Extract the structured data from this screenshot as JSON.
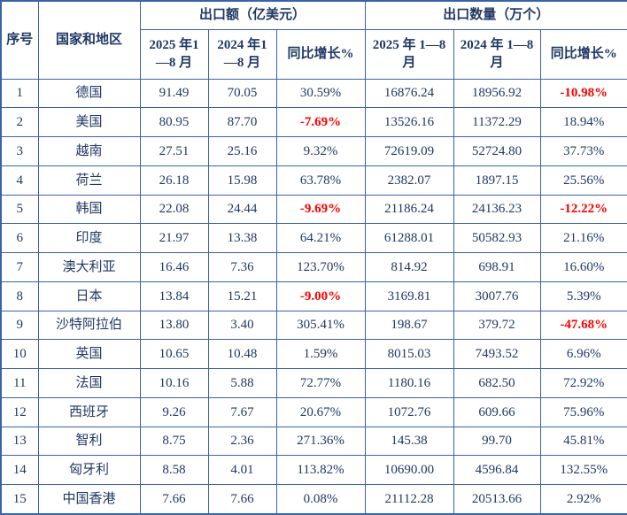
{
  "colors": {
    "text": "#1f3864",
    "border": "#3a62a8",
    "negative": "#ff0000",
    "background": "#ffffff"
  },
  "table": {
    "header": {
      "col_index": "序号",
      "col_country": "国家和地区",
      "group_export_value": "出口额（亿美元）",
      "group_export_qty": "出口数量（万个）",
      "sub_value_2025": "2025 年1—8 月",
      "sub_value_2024": "2024 年1—8 月",
      "sub_value_yoy": "同比增长%",
      "sub_qty_2025": "2025 年 1—8 月",
      "sub_qty_2024": "2024 年 1—8 月",
      "sub_qty_yoy": "同比增长%"
    },
    "rows": [
      {
        "no": "1",
        "country": "德国",
        "v2025": "91.49",
        "v2024": "70.05",
        "vyoy": "30.59%",
        "q2025": "16876.24",
        "q2024": "18956.92",
        "qyoy": "-10.98%"
      },
      {
        "no": "2",
        "country": "美国",
        "v2025": "80.95",
        "v2024": "87.70",
        "vyoy": "-7.69%",
        "q2025": "13526.16",
        "q2024": "11372.29",
        "qyoy": "18.94%"
      },
      {
        "no": "3",
        "country": "越南",
        "v2025": "27.51",
        "v2024": "25.16",
        "vyoy": "9.32%",
        "q2025": "72619.09",
        "q2024": "52724.80",
        "qyoy": "37.73%"
      },
      {
        "no": "4",
        "country": "荷兰",
        "v2025": "26.18",
        "v2024": "15.98",
        "vyoy": "63.78%",
        "q2025": "2382.07",
        "q2024": "1897.15",
        "qyoy": "25.56%"
      },
      {
        "no": "5",
        "country": "韩国",
        "v2025": "22.08",
        "v2024": "24.44",
        "vyoy": "-9.69%",
        "q2025": "21186.24",
        "q2024": "24136.23",
        "qyoy": "-12.22%"
      },
      {
        "no": "6",
        "country": "印度",
        "v2025": "21.97",
        "v2024": "13.38",
        "vyoy": "64.21%",
        "q2025": "61288.01",
        "q2024": "50582.93",
        "qyoy": "21.16%"
      },
      {
        "no": "7",
        "country": "澳大利亚",
        "v2025": "16.46",
        "v2024": "7.36",
        "vyoy": "123.70%",
        "q2025": "814.92",
        "q2024": "698.91",
        "qyoy": "16.60%"
      },
      {
        "no": "8",
        "country": "日本",
        "v2025": "13.84",
        "v2024": "15.21",
        "vyoy": "-9.00%",
        "q2025": "3169.81",
        "q2024": "3007.76",
        "qyoy": "5.39%"
      },
      {
        "no": "9",
        "country": "沙特阿拉伯",
        "v2025": "13.80",
        "v2024": "3.40",
        "vyoy": "305.41%",
        "q2025": "198.67",
        "q2024": "379.72",
        "qyoy": "-47.68%"
      },
      {
        "no": "10",
        "country": "英国",
        "v2025": "10.65",
        "v2024": "10.48",
        "vyoy": "1.59%",
        "q2025": "8015.03",
        "q2024": "7493.52",
        "qyoy": "6.96%"
      },
      {
        "no": "11",
        "country": "法国",
        "v2025": "10.16",
        "v2024": "5.88",
        "vyoy": "72.77%",
        "q2025": "1180.16",
        "q2024": "682.50",
        "qyoy": "72.92%"
      },
      {
        "no": "12",
        "country": "西班牙",
        "v2025": "9.26",
        "v2024": "7.67",
        "vyoy": "20.67%",
        "q2025": "1072.76",
        "q2024": "609.66",
        "qyoy": "75.96%"
      },
      {
        "no": "13",
        "country": "智利",
        "v2025": "8.75",
        "v2024": "2.36",
        "vyoy": "271.36%",
        "q2025": "145.38",
        "q2024": "99.70",
        "qyoy": "45.81%"
      },
      {
        "no": "14",
        "country": "匈牙利",
        "v2025": "8.58",
        "v2024": "4.01",
        "vyoy": "113.82%",
        "q2025": "10690.00",
        "q2024": "4596.84",
        "qyoy": "132.55%"
      },
      {
        "no": "15",
        "country": "中国香港",
        "v2025": "7.66",
        "v2024": "7.66",
        "vyoy": "0.08%",
        "q2025": "21112.28",
        "q2024": "20513.66",
        "qyoy": "2.92%"
      }
    ]
  }
}
